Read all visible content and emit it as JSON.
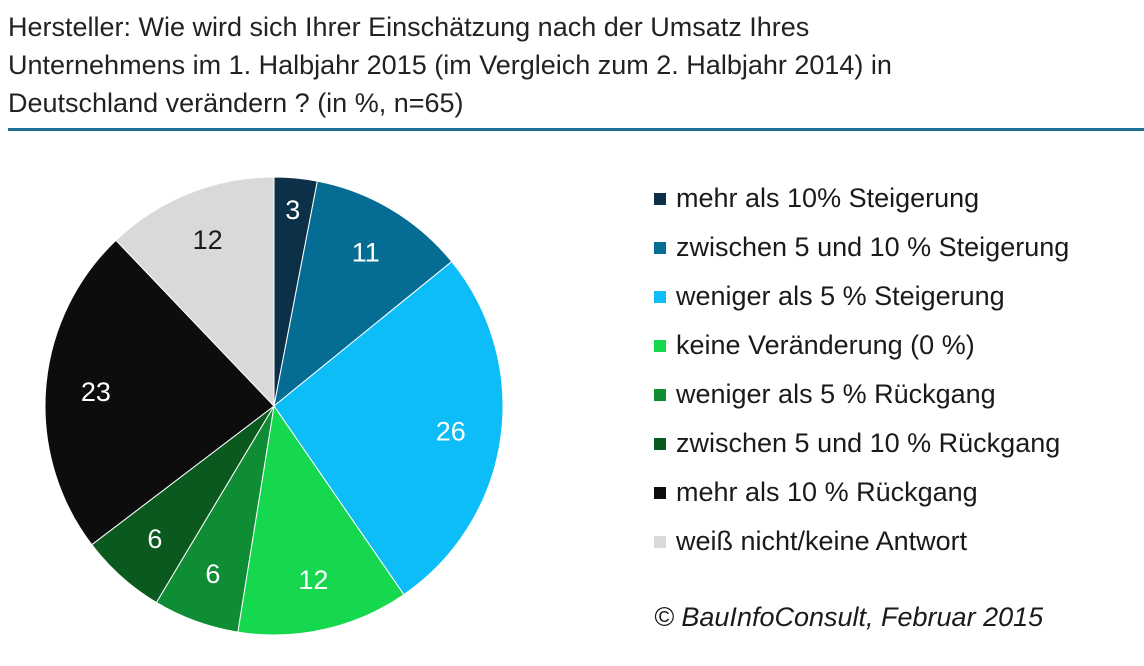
{
  "title": "Hersteller: Wie wird  sich Ihrer Einschätzung nach der Umsatz Ihres\nUnternehmens im 1. Halbjahr 2015 (im Vergleich zum 2. Halbjahr 2014) in\nDeutschland  verändern ? (in %, n=65)",
  "source": "© BauInfoConsult, Februar 2015",
  "chart_data": {
    "type": "pie",
    "title": "Hersteller: Wie wird  sich Ihrer Einschätzung nach der Umsatz Ihres Unternehmens im 1. Halbjahr 2015 (im Vergleich zum 2. Halbjahr 2014) in Deutschland  verändern ? (in %, n=65)",
    "legend_position": "right",
    "slices": [
      {
        "label": "mehr als 10% Steigerung",
        "value": 3,
        "color": "#0b3048"
      },
      {
        "label": "zwischen 5 und 10 % Steigerung",
        "value": 11,
        "color": "#056d93"
      },
      {
        "label": "weniger als 5 % Steigerung",
        "value": 26,
        "color": "#0dbdf8"
      },
      {
        "label": "keine Veränderung (0 %)",
        "value": 12,
        "color": "#15d84e"
      },
      {
        "label": "weniger als 5 % Rückgang",
        "value": 6,
        "color": "#0e8d34"
      },
      {
        "label": "zwischen 5 und 10 % Rückgang",
        "value": 6,
        "color": "#0a5a1f"
      },
      {
        "label": "mehr als 10 % Rückgang",
        "value": 23,
        "color": "#0d0d0d"
      },
      {
        "label": "weiß nicht/keine Antwort",
        "value": 12,
        "color": "#d9d9d9"
      }
    ]
  }
}
